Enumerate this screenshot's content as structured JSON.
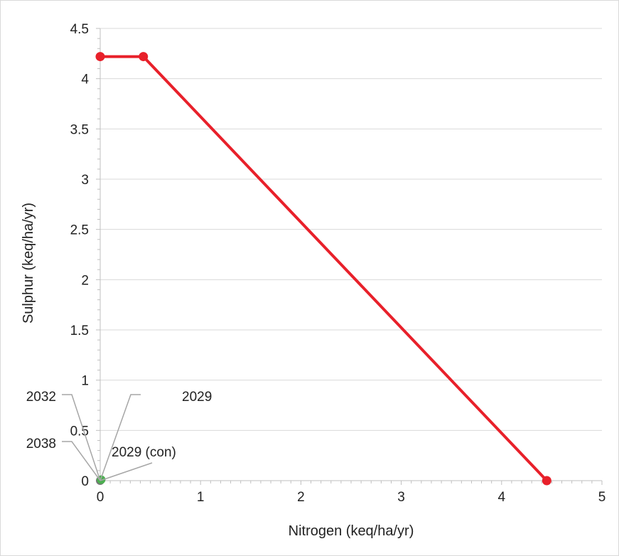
{
  "chart_data": {
    "type": "line",
    "xlabel": "Nitrogen (keq/ha/yr)",
    "ylabel": "Sulphur  (keq/ha/yr)",
    "xlim": [
      0,
      5
    ],
    "ylim": [
      0,
      4.5
    ],
    "x_ticks": [
      "0",
      "1",
      "2",
      "3",
      "4",
      "5"
    ],
    "y_ticks": [
      "0",
      "0.5",
      "1",
      "1.5",
      "2",
      "2.5",
      "3",
      "3.5",
      "4",
      "4.5"
    ],
    "grid": "horizontal",
    "series": [
      {
        "color": "#e8202a",
        "points": [
          {
            "x": 0,
            "y": 4.22
          },
          {
            "x": 0.43,
            "y": 4.22
          },
          {
            "x": 4.45,
            "y": 0
          }
        ]
      }
    ],
    "markers": [
      {
        "x": 0.01,
        "y": 0.01,
        "color": "#4caf50"
      },
      {
        "x": 0,
        "y": 0,
        "color": "#777777"
      }
    ],
    "annotations": [
      {
        "label": "2032"
      },
      {
        "label": "2038"
      },
      {
        "label": "2029"
      },
      {
        "label": "2029 (con)"
      }
    ]
  }
}
